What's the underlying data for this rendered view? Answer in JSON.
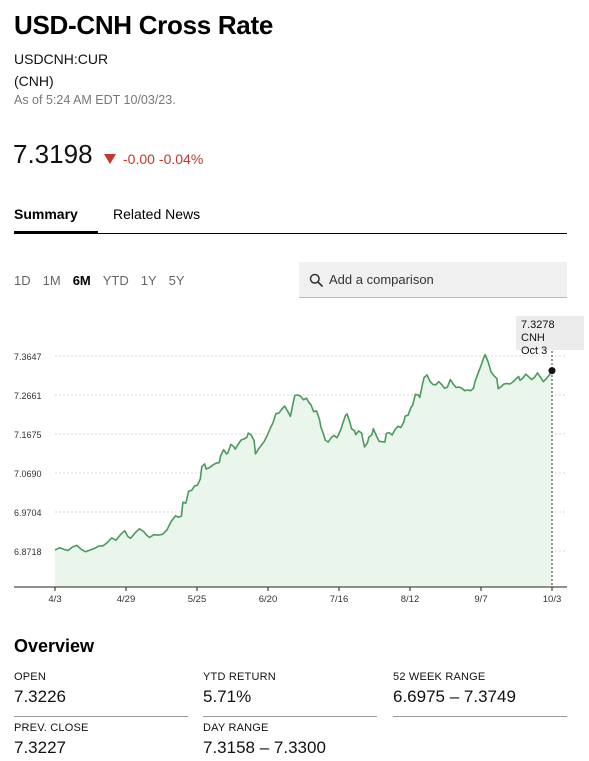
{
  "header": {
    "title": "USD-CNH Cross Rate",
    "ticker": "USDCNH:CUR",
    "currency": "(CNH)",
    "as_of": "As of 5:24 AM EDT 10/03/23."
  },
  "quote": {
    "price": "7.3198",
    "change": "-0.00",
    "change_pct": "-0.04%",
    "change_color": "#c0392b"
  },
  "tabs": [
    {
      "label": "Summary",
      "active": true
    },
    {
      "label": "Related News",
      "active": false
    }
  ],
  "ranges": [
    {
      "label": "1D",
      "active": false
    },
    {
      "label": "1M",
      "active": false
    },
    {
      "label": "6M",
      "active": true
    },
    {
      "label": "YTD",
      "active": false
    },
    {
      "label": "1Y",
      "active": false
    },
    {
      "label": "5Y",
      "active": false
    }
  ],
  "compare": {
    "placeholder": "Add a comparison",
    "icon": "search-icon"
  },
  "chart_data": {
    "type": "area",
    "y_ticks": [
      "7.3647",
      "7.2661",
      "7.1675",
      "7.0690",
      "6.9704",
      "6.8718"
    ],
    "x_ticks": [
      "4/3",
      "4/29",
      "5/25",
      "6/20",
      "7/16",
      "8/12",
      "9/7",
      "10/3"
    ],
    "ylim": [
      6.8718,
      7.3647
    ],
    "grid": true,
    "line_color": "#4a9a5c",
    "fill_color": "#eaf5ec",
    "tooltip": {
      "value": "7.3278 CNH",
      "date": "Oct 3"
    },
    "series": [
      {
        "values": [
          [
            0,
            6.874
          ],
          [
            3,
            6.88
          ],
          [
            6,
            6.876
          ],
          [
            9,
            6.873
          ],
          [
            12,
            6.882
          ],
          [
            15,
            6.886
          ],
          [
            18,
            6.876
          ],
          [
            21,
            6.87
          ],
          [
            24,
            6.874
          ],
          [
            27,
            6.878
          ],
          [
            30,
            6.884
          ],
          [
            33,
            6.885
          ],
          [
            36,
            6.893
          ],
          [
            39,
            6.905
          ],
          [
            42,
            6.899
          ],
          [
            45,
            6.913
          ],
          [
            48,
            6.923
          ],
          [
            50,
            6.909
          ],
          [
            52,
            6.904
          ],
          [
            55,
            6.917
          ],
          [
            58,
            6.928
          ],
          [
            61,
            6.921
          ],
          [
            63,
            6.912
          ],
          [
            65,
            6.906
          ],
          [
            68,
            6.913
          ],
          [
            71,
            6.912
          ],
          [
            74,
            6.914
          ],
          [
            77,
            6.925
          ],
          [
            80,
            6.947
          ],
          [
            83,
            6.961
          ],
          [
            85,
            6.957
          ],
          [
            87,
            6.96
          ],
          [
            88,
            6.995
          ],
          [
            90,
            6.993
          ],
          [
            92,
            7.023
          ],
          [
            94,
            7.025
          ],
          [
            96,
            7.036
          ],
          [
            98,
            7.038
          ],
          [
            100,
            7.054
          ],
          [
            101,
            7.085
          ],
          [
            103,
            7.092
          ],
          [
            104,
            7.079
          ],
          [
            106,
            7.082
          ],
          [
            109,
            7.09
          ],
          [
            111,
            7.094
          ],
          [
            113,
            7.095
          ],
          [
            114,
            7.113
          ],
          [
            116,
            7.128
          ],
          [
            118,
            7.117
          ],
          [
            119,
            7.12
          ],
          [
            121,
            7.141
          ],
          [
            123,
            7.136
          ],
          [
            124,
            7.129
          ],
          [
            126,
            7.141
          ],
          [
            128,
            7.152
          ],
          [
            130,
            7.155
          ],
          [
            132,
            7.159
          ],
          [
            133,
            7.17
          ],
          [
            135,
            7.165
          ],
          [
            137,
            7.15
          ],
          [
            138,
            7.117
          ],
          [
            140,
            7.13
          ],
          [
            142,
            7.139
          ],
          [
            144,
            7.149
          ],
          [
            146,
            7.164
          ],
          [
            148,
            7.181
          ],
          [
            150,
            7.196
          ],
          [
            152,
            7.219
          ],
          [
            154,
            7.22
          ],
          [
            156,
            7.23
          ],
          [
            158,
            7.238
          ],
          [
            160,
            7.226
          ],
          [
            162,
            7.212
          ],
          [
            164,
            7.248
          ],
          [
            165,
            7.265
          ],
          [
            167,
            7.266
          ],
          [
            169,
            7.263
          ],
          [
            171,
            7.254
          ],
          [
            173,
            7.258
          ],
          [
            175,
            7.246
          ],
          [
            176,
            7.242
          ],
          [
            178,
            7.224
          ],
          [
            180,
            7.226
          ],
          [
            182,
            7.204
          ],
          [
            183,
            7.185
          ],
          [
            185,
            7.165
          ],
          [
            186,
            7.152
          ],
          [
            188,
            7.147
          ],
          [
            190,
            7.158
          ],
          [
            192,
            7.164
          ],
          [
            194,
            7.158
          ],
          [
            195,
            7.165
          ],
          [
            197,
            7.182
          ],
          [
            198,
            7.194
          ],
          [
            200,
            7.215
          ],
          [
            201,
            7.218
          ],
          [
            203,
            7.196
          ],
          [
            204,
            7.181
          ],
          [
            206,
            7.176
          ],
          [
            207,
            7.166
          ],
          [
            209,
            7.175
          ],
          [
            211,
            7.17
          ],
          [
            212,
            7.151
          ],
          [
            213,
            7.135
          ],
          [
            215,
            7.145
          ],
          [
            216,
            7.16
          ],
          [
            218,
            7.165
          ],
          [
            219,
            7.181
          ],
          [
            221,
            7.164
          ],
          [
            223,
            7.149
          ],
          [
            225,
            7.148
          ],
          [
            227,
            7.147
          ],
          [
            228,
            7.169
          ],
          [
            230,
            7.171
          ],
          [
            232,
            7.165
          ],
          [
            234,
            7.179
          ],
          [
            236,
            7.187
          ],
          [
            238,
            7.184
          ],
          [
            240,
            7.198
          ],
          [
            241,
            7.213
          ],
          [
            243,
            7.215
          ],
          [
            245,
            7.235
          ],
          [
            246,
            7.239
          ],
          [
            248,
            7.268
          ],
          [
            250,
            7.266
          ],
          [
            251,
            7.26
          ],
          [
            253,
            7.296
          ],
          [
            254,
            7.31
          ],
          [
            256,
            7.317
          ],
          [
            258,
            7.301
          ],
          [
            260,
            7.293
          ],
          [
            262,
            7.292
          ],
          [
            264,
            7.3
          ],
          [
            266,
            7.293
          ],
          [
            268,
            7.283
          ],
          [
            270,
            7.286
          ],
          [
            272,
            7.305
          ],
          [
            274,
            7.294
          ],
          [
            276,
            7.285
          ],
          [
            278,
            7.286
          ],
          [
            280,
            7.283
          ],
          [
            282,
            7.277
          ],
          [
            284,
            7.279
          ],
          [
            286,
            7.277
          ],
          [
            288,
            7.283
          ],
          [
            289,
            7.3
          ],
          [
            291,
            7.32
          ],
          [
            293,
            7.339
          ],
          [
            295,
            7.36
          ],
          [
            296,
            7.368
          ],
          [
            298,
            7.35
          ],
          [
            300,
            7.325
          ],
          [
            302,
            7.315
          ],
          [
            304,
            7.308
          ],
          [
            305,
            7.282
          ],
          [
            307,
            7.287
          ],
          [
            309,
            7.294
          ],
          [
            311,
            7.295
          ],
          [
            313,
            7.294
          ],
          [
            315,
            7.299
          ],
          [
            317,
            7.306
          ],
          [
            319,
            7.313
          ],
          [
            320,
            7.303
          ],
          [
            322,
            7.309
          ],
          [
            324,
            7.319
          ],
          [
            326,
            7.312
          ],
          [
            328,
            7.305
          ],
          [
            330,
            7.311
          ],
          [
            332,
            7.322
          ],
          [
            334,
            7.311
          ],
          [
            336,
            7.3
          ],
          [
            338,
            7.307
          ],
          [
            340,
            7.316
          ],
          [
            342,
            7.3278
          ]
        ]
      }
    ]
  },
  "overview": {
    "title": "Overview",
    "stats": [
      {
        "label": "OPEN",
        "value": "7.3226"
      },
      {
        "label": "YTD RETURN",
        "value": "5.71%"
      },
      {
        "label": "52 WEEK RANGE",
        "value": "6.6975 – 7.3749"
      },
      {
        "label": "PREV. CLOSE",
        "value": "7.3227"
      },
      {
        "label": "DAY RANGE",
        "value": "7.3158 – 7.3300"
      }
    ]
  }
}
